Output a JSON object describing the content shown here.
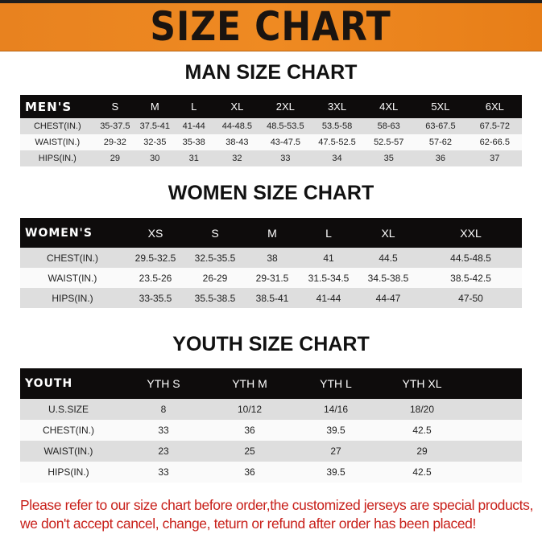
{
  "banner": {
    "title": "SIZE CHART",
    "color": "#ef8a22"
  },
  "men": {
    "title": "MAN SIZE CHART",
    "headers": [
      "MEN'S",
      "S",
      "M",
      "L",
      "XL",
      "2XL",
      "3XL",
      "4XL",
      "5XL",
      "6XL"
    ],
    "rows": [
      [
        "CHEST(IN.)",
        "35-37.5",
        "37.5-41",
        "41-44",
        "44-48.5",
        "48.5-53.5",
        "53.5-58",
        "58-63",
        "63-67.5",
        "67.5-72"
      ],
      [
        "WAIST(IN.)",
        "29-32",
        "32-35",
        "35-38",
        "38-43",
        "43-47.5",
        "47.5-52.5",
        "52.5-57",
        "57-62",
        "62-66.5"
      ],
      [
        "HIPS(IN.)",
        "29",
        "30",
        "31",
        "32",
        "33",
        "34",
        "35",
        "36",
        "37"
      ]
    ]
  },
  "women": {
    "title": "WOMEN SIZE CHART",
    "headers": [
      "WOMEN'S",
      "XS",
      "S",
      "M",
      "L",
      "XL",
      "XXL"
    ],
    "rows": [
      [
        "CHEST(IN.)",
        "29.5-32.5",
        "32.5-35.5",
        "38",
        "41",
        "44.5",
        "44.5-48.5"
      ],
      [
        "WAIST(IN.)",
        "23.5-26",
        "26-29",
        "29-31.5",
        "31.5-34.5",
        "34.5-38.5",
        "38.5-42.5"
      ],
      [
        "HIPS(IN.)",
        "33-35.5",
        "35.5-38.5",
        "38.5-41",
        "41-44",
        "44-47",
        "47-50"
      ]
    ]
  },
  "youth": {
    "title": "YOUTH SIZE CHART",
    "headers": [
      "YOUTH",
      "YTH S",
      "YTH M",
      "YTH L",
      "YTH XL"
    ],
    "rows": [
      [
        "U.S.SIZE",
        "8",
        "10/12",
        "14/16",
        "18/20"
      ],
      [
        "CHEST(IN.)",
        "33",
        "36",
        "39.5",
        "42.5"
      ],
      [
        "WAIST(IN.)",
        "23",
        "25",
        "27",
        "29"
      ],
      [
        "HIPS(IN.)",
        "33",
        "36",
        "39.5",
        "42.5"
      ]
    ]
  },
  "notice": {
    "line1": "Please refer to our size chart before order,the customized jerseys are special products,",
    "line2": "we don't accept cancel, change, teturn or refund after order has been placed!",
    "color": "#c8201a"
  }
}
